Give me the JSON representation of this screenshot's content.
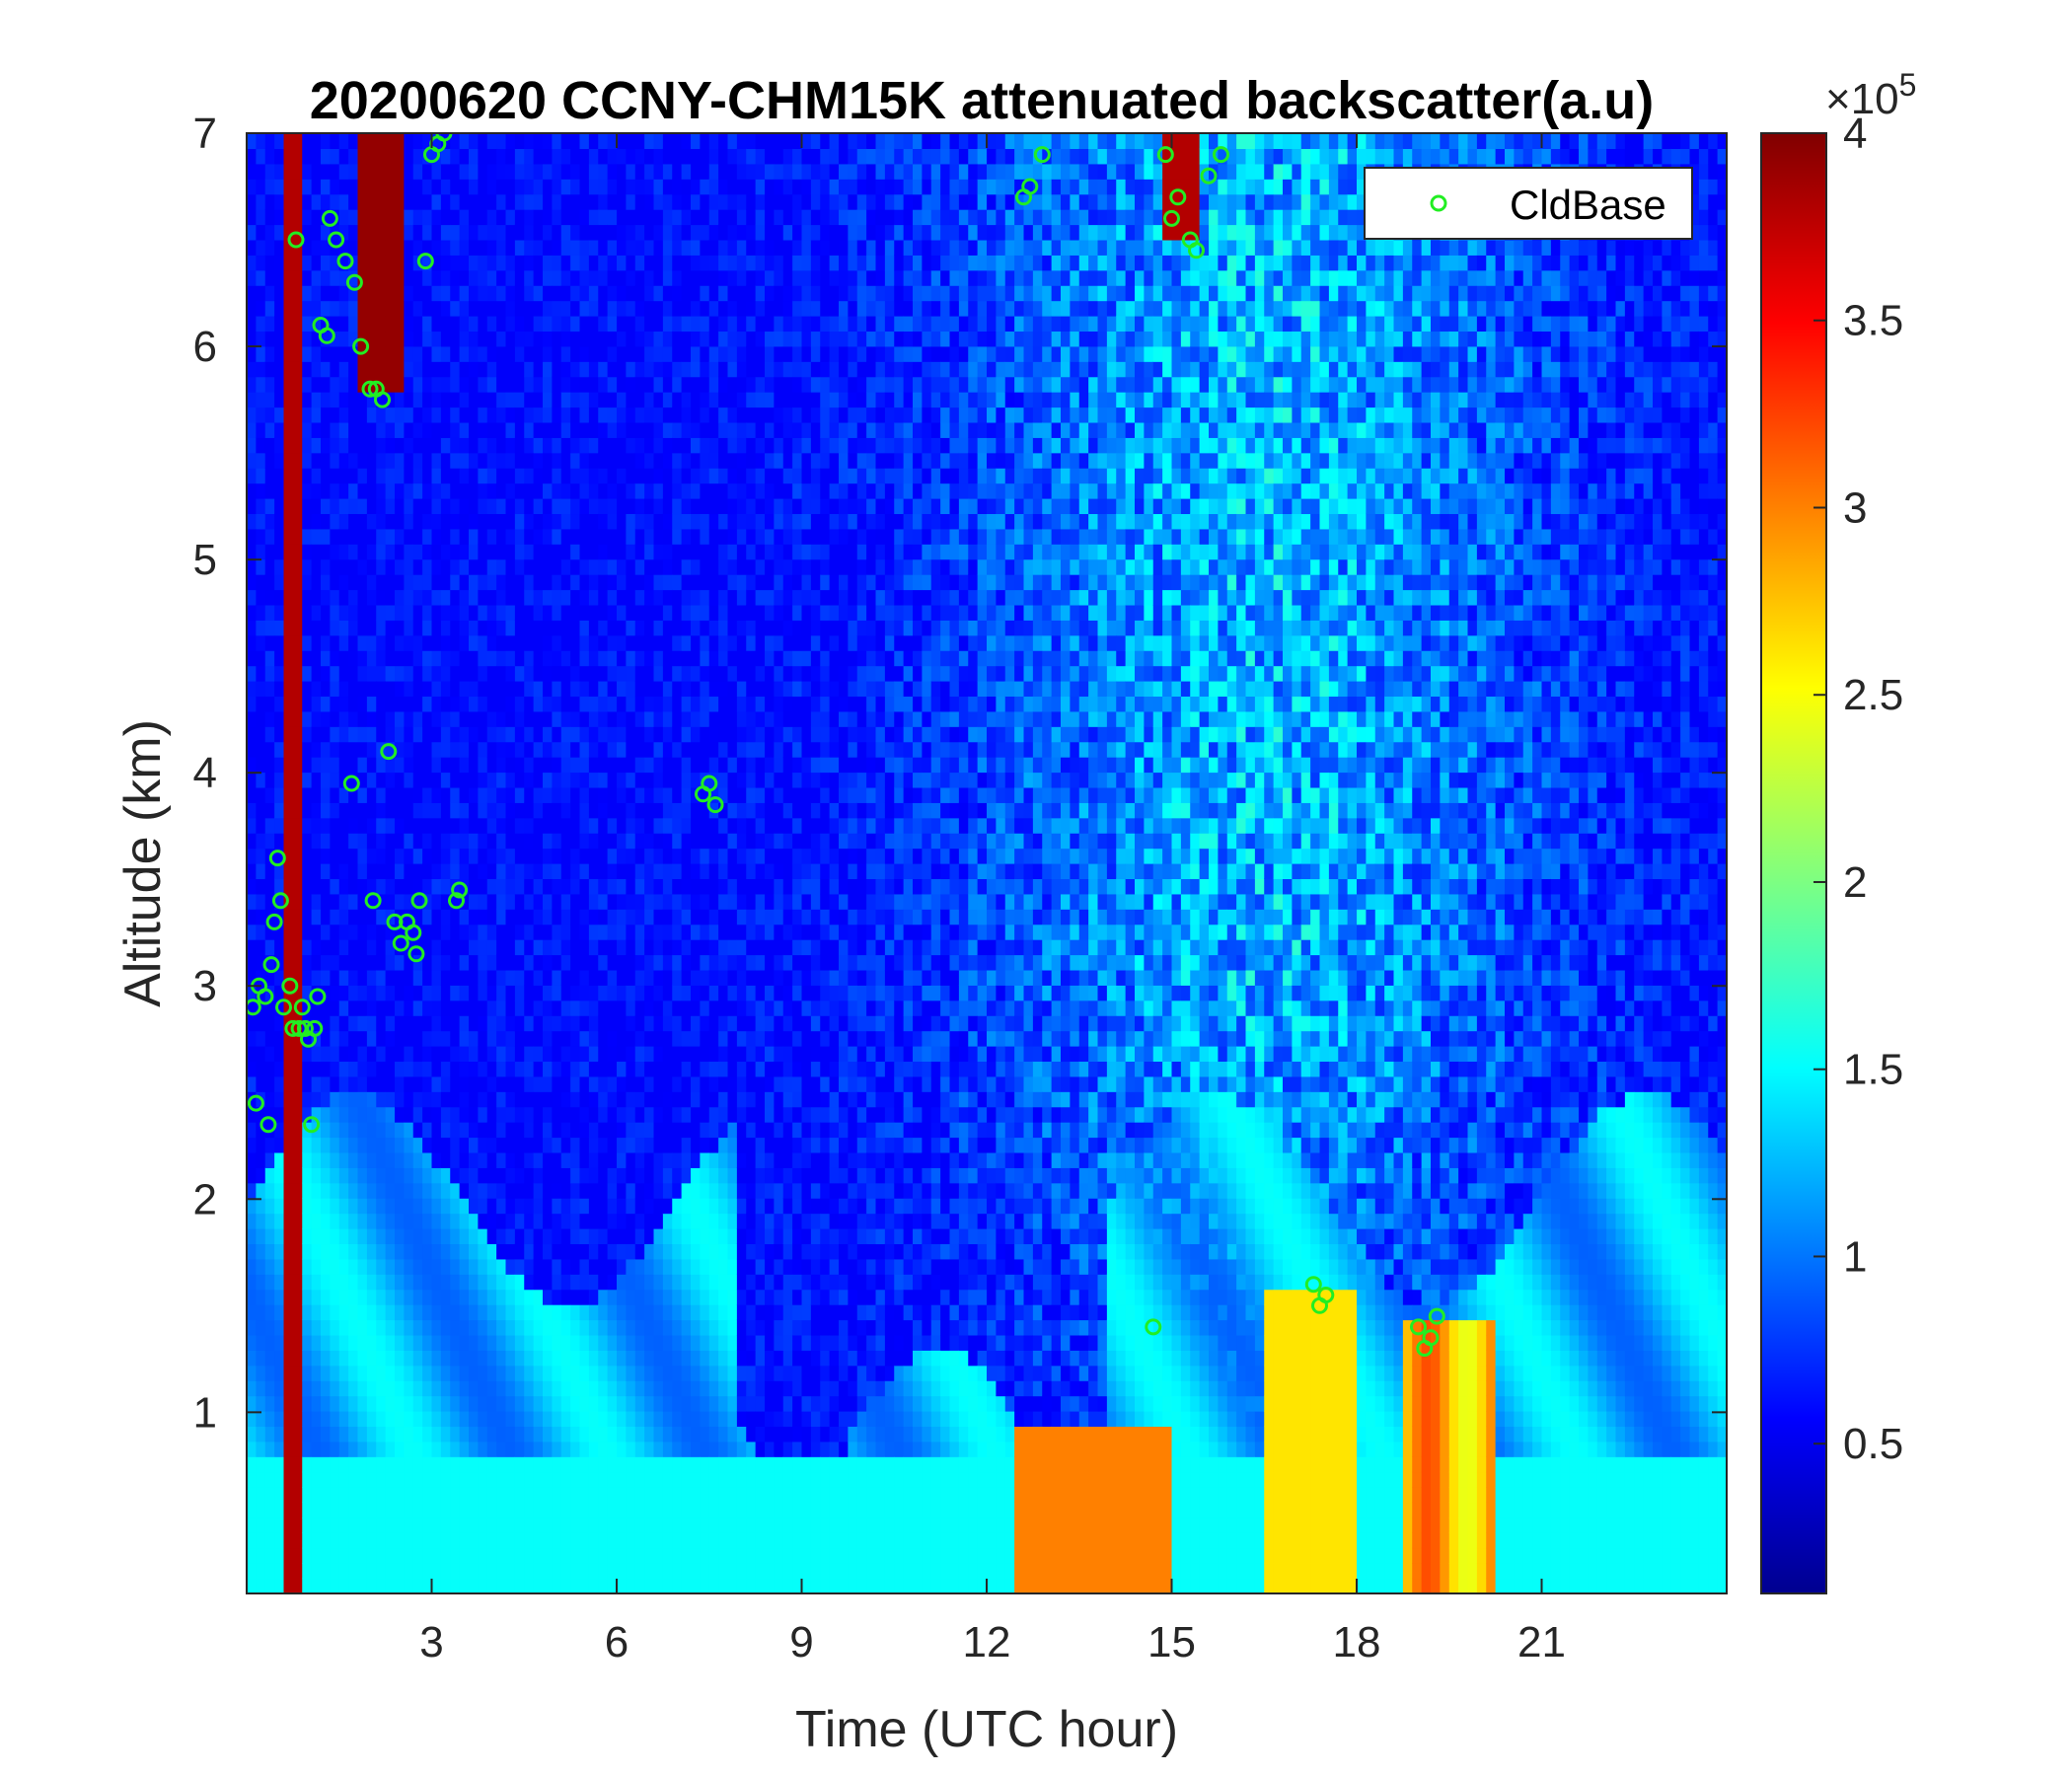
{
  "chart_data": {
    "type": "heatmap",
    "title": "20200620 CCNY-CHM15K attenuated backscatter(a.u)",
    "xlabel": "Time (UTC hour)",
    "ylabel": "Altitude (km)",
    "xlim": [
      0,
      24
    ],
    "ylim": [
      0.15,
      7
    ],
    "xticks": [
      3,
      6,
      9,
      12,
      15,
      18,
      21
    ],
    "yticks": [
      1,
      2,
      3,
      4,
      5,
      6,
      7
    ],
    "colorbar": {
      "colormap": "jet",
      "range": [
        10000,
        400000
      ],
      "ticks": [
        0.5,
        1,
        1.5,
        2,
        2.5,
        3,
        3.5,
        4
      ],
      "tick_labels": [
        "0.5",
        "1",
        "1.5",
        "2",
        "2.5",
        "3",
        "3.5",
        "4"
      ],
      "multiplier_base": "×10",
      "multiplier_exp": "5"
    },
    "legend": {
      "position": "top-right",
      "entries": [
        {
          "name": "CldBase",
          "marker": "circle",
          "color": "#22ee22"
        }
      ]
    },
    "series": [
      {
        "name": "CldBase",
        "type": "scatter",
        "points": [
          [
            0.1,
            2.9
          ],
          [
            0.2,
            3.0
          ],
          [
            0.15,
            2.45
          ],
          [
            0.3,
            2.95
          ],
          [
            0.35,
            2.35
          ],
          [
            0.4,
            3.1
          ],
          [
            0.45,
            3.3
          ],
          [
            0.5,
            3.6
          ],
          [
            0.55,
            3.4
          ],
          [
            0.6,
            2.9
          ],
          [
            0.7,
            3.0
          ],
          [
            0.75,
            2.8
          ],
          [
            0.8,
            6.5
          ],
          [
            0.85,
            2.8
          ],
          [
            0.9,
            2.9
          ],
          [
            0.95,
            2.8
          ],
          [
            1.0,
            2.75
          ],
          [
            1.05,
            2.35
          ],
          [
            1.1,
            2.8
          ],
          [
            1.15,
            2.95
          ],
          [
            1.2,
            6.1
          ],
          [
            1.3,
            6.05
          ],
          [
            1.35,
            6.6
          ],
          [
            1.45,
            6.5
          ],
          [
            1.6,
            6.4
          ],
          [
            1.7,
            3.95
          ],
          [
            1.75,
            6.3
          ],
          [
            1.85,
            6.0
          ],
          [
            2.0,
            5.8
          ],
          [
            2.05,
            3.4
          ],
          [
            2.1,
            5.8
          ],
          [
            2.2,
            5.75
          ],
          [
            2.3,
            4.1
          ],
          [
            2.4,
            3.3
          ],
          [
            2.5,
            3.2
          ],
          [
            2.6,
            3.3
          ],
          [
            2.7,
            3.25
          ],
          [
            2.75,
            3.15
          ],
          [
            2.8,
            3.4
          ],
          [
            2.9,
            6.4
          ],
          [
            3.0,
            6.9
          ],
          [
            3.1,
            6.95
          ],
          [
            3.2,
            7.0
          ],
          [
            3.4,
            3.4
          ],
          [
            3.45,
            3.45
          ],
          [
            7.4,
            3.9
          ],
          [
            7.5,
            3.95
          ],
          [
            7.6,
            3.85
          ],
          [
            12.6,
            6.7
          ],
          [
            12.7,
            6.75
          ],
          [
            12.9,
            6.9
          ],
          [
            14.7,
            1.4
          ],
          [
            14.9,
            6.9
          ],
          [
            15.0,
            6.6
          ],
          [
            15.1,
            6.7
          ],
          [
            15.3,
            6.5
          ],
          [
            15.4,
            6.45
          ],
          [
            15.6,
            6.8
          ],
          [
            15.8,
            6.9
          ],
          [
            17.3,
            1.6
          ],
          [
            17.4,
            1.5
          ],
          [
            17.5,
            1.55
          ],
          [
            19.0,
            1.4
          ],
          [
            19.1,
            1.3
          ],
          [
            19.2,
            1.35
          ],
          [
            19.3,
            1.45
          ]
        ]
      }
    ]
  }
}
